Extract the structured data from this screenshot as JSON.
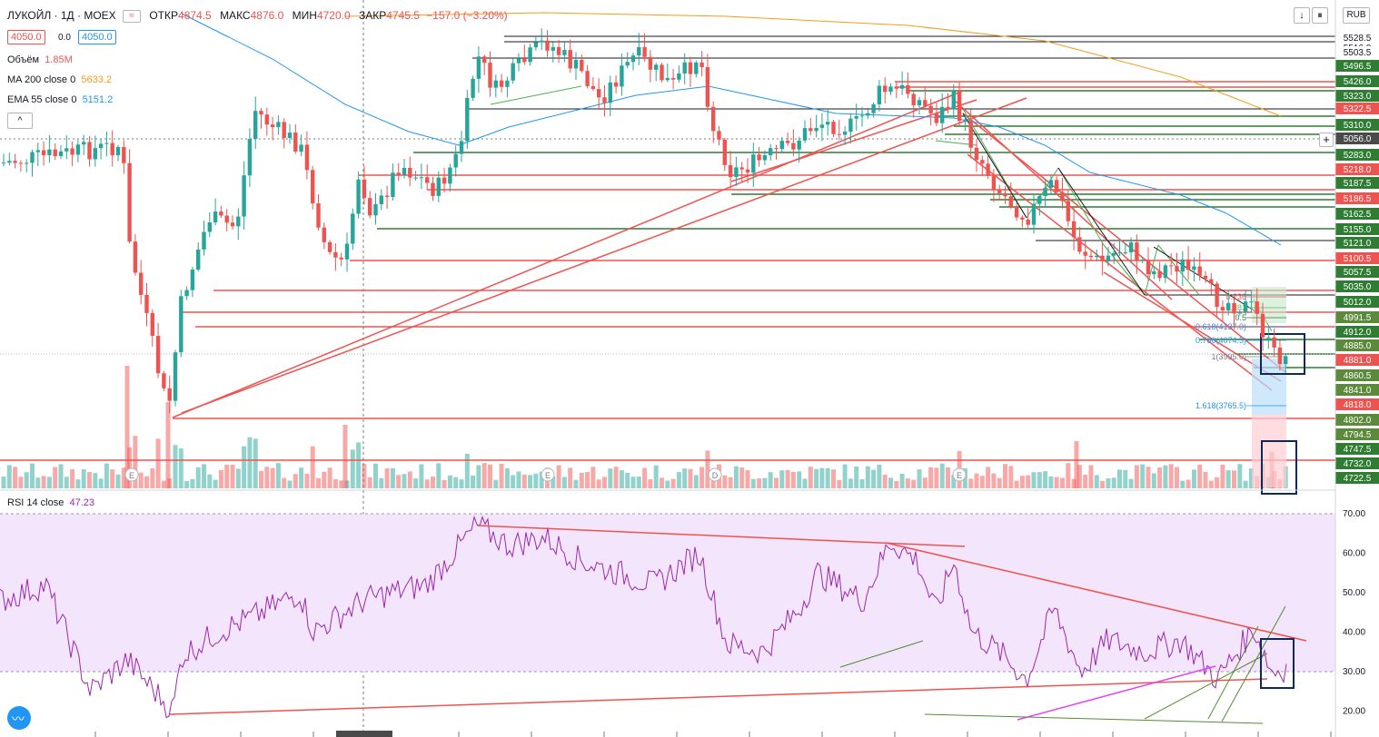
{
  "header": {
    "symbol": "ЛУКОЙЛ · 1Д · MOEX",
    "open_label": "ОТКР",
    "open": "4874.5",
    "high_label": "МАКС",
    "high": "4876.0",
    "low_label": "МИН",
    "low": "4720.0",
    "close_label": "ЗАКР",
    "close": "4745.5",
    "change": "−157.0 (−3.20%)"
  },
  "order": {
    "sell": "4050.0",
    "spread": "0.0",
    "buy": "4050.0"
  },
  "indicators": {
    "volume_name": "Объём",
    "volume_value": "1.85M",
    "ma_name": "MA 200 close 0",
    "ma_value": "5633.2",
    "ema_name": "EMA 55 close 0",
    "ema_value": "5151.2",
    "rsi_name": "RSI 14 close",
    "rsi_value": "47.23"
  },
  "currency": "RUB",
  "colors": {
    "up": "#26a69a",
    "down": "#ef5350",
    "ma": "#f59c1a",
    "ema": "#2196f3",
    "rsi": "#9c27b0",
    "rsi_band": "#f3e5fc"
  },
  "chart_data": [
    {
      "type": "candlestick",
      "title": "ЛУКОЙЛ · 1Д · MOEX",
      "price_axis_labels": [
        "5528.5",
        "5516.0",
        "5503.5",
        "5496.5",
        "5426.0",
        "5323.0",
        "5322.5",
        "5310.0",
        "5056.0",
        "5283.0",
        "5218.0",
        "5187.5",
        "5186.5",
        "5162.5",
        "5155.0",
        "5121.0",
        "5100.5",
        "5057.5",
        "5035.0",
        "5012.0",
        "4991.5",
        "4912.0",
        "4885.0",
        "4881.0",
        "4860.5",
        "4841.0",
        "4818.0",
        "4802.0",
        "4794.5",
        "4747.5",
        "4732.0",
        "4722.5"
      ],
      "fib_labels": [
        "0.236",
        "0.382",
        "0.5",
        "0.618(4137.0)",
        "0.786(4074.5)",
        "1(3995.0)",
        "1.618(3765.5)"
      ],
      "volume_markers": [
        "E",
        "E",
        "D",
        "E"
      ]
    },
    {
      "type": "line",
      "title": "RSI 14 close",
      "ylim": [
        15,
        75
      ],
      "y_ticks": [
        "70.00",
        "60.00",
        "50.00",
        "40.00",
        "30.00",
        "20.00"
      ],
      "band": [
        30,
        70
      ]
    }
  ]
}
